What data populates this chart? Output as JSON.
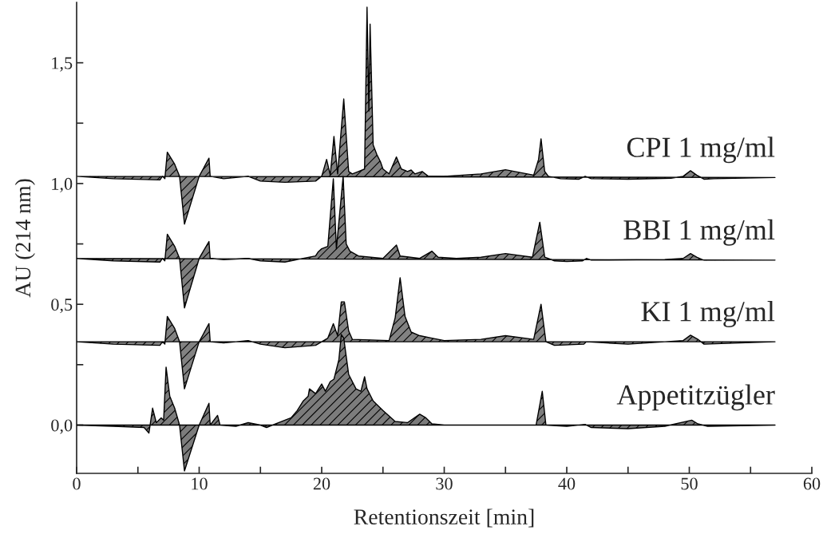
{
  "chart_data": {
    "type": "area",
    "xlabel": "Retentionszeit [min]",
    "ylabel": "AU (214 nm)",
    "xlim": [
      0,
      60
    ],
    "ylim": [
      -0.2,
      1.75
    ],
    "xticks": [
      0,
      {
        "value": 5,
        "label": null
      },
      10,
      {
        "value": 15,
        "label": null
      },
      20,
      {
        "value": 25,
        "label": null
      },
      30,
      {
        "value": 35,
        "label": null
      },
      40,
      {
        "value": 45,
        "label": null
      },
      50,
      {
        "value": 55,
        "label": null
      },
      60
    ],
    "yticks": [
      {
        "value": 0,
        "label": "0,0"
      },
      {
        "value": 0.25,
        "label": null
      },
      {
        "value": 0.5,
        "label": "0,5"
      },
      {
        "value": 0.75,
        "label": null
      },
      {
        "value": 1.0,
        "label": "1,0"
      },
      {
        "value": 1.25,
        "label": null
      },
      {
        "value": 1.5,
        "label": "1,5"
      }
    ],
    "grid": false,
    "legend": false,
    "series": [
      {
        "name": "CPI 1 mg/ml",
        "color": "#808080",
        "x": [
          0,
          3,
          6.8,
          7.0,
          7.2,
          7.4,
          8.0,
          8.4,
          8.8,
          10.0,
          10.8,
          10.9,
          12,
          14,
          15,
          17,
          19.5,
          20.0,
          20.4,
          20.7,
          21.0,
          21.3,
          21.8,
          22.2,
          22.5,
          23.0,
          23.5,
          23.7,
          23.85,
          23.95,
          24.2,
          24.5,
          24.8,
          25,
          25.5,
          26.1,
          26.5,
          27,
          27.3,
          27.6,
          28.2,
          28.7,
          30,
          33,
          35,
          37.3,
          37.7,
          37.9,
          38.2,
          38.5,
          39.5,
          41,
          41.5,
          42,
          45,
          48.5,
          49.5,
          50.1,
          50.6,
          51.2,
          52,
          57
        ],
        "values": [
          1.03,
          1.02,
          1.015,
          1.03,
          1.02,
          1.13,
          1.08,
          1.03,
          0.832,
          1.03,
          1.105,
          1.03,
          1.02,
          1.03,
          1.01,
          1.005,
          1.01,
          1.03,
          1.1,
          1.035,
          1.195,
          1.04,
          1.35,
          1.05,
          1.04,
          1.05,
          1.06,
          1.73,
          1.3,
          1.66,
          1.16,
          1.12,
          1.09,
          1.06,
          1.04,
          1.11,
          1.06,
          1.05,
          1.056,
          1.04,
          1.05,
          1.03,
          1.03,
          1.04,
          1.057,
          1.035,
          1.1,
          1.185,
          1.05,
          1.03,
          1.02,
          1.018,
          1.03,
          1.02,
          1.018,
          1.022,
          1.03,
          1.053,
          1.035,
          1.018,
          1.02,
          1.025
        ]
      },
      {
        "name": "BBI 1 mg/ml",
        "color": "#7e7e7e",
        "x": [
          0,
          3,
          6.8,
          7.0,
          7.2,
          7.4,
          8.0,
          8.4,
          8.8,
          10.0,
          10.8,
          10.9,
          12,
          14,
          15,
          17,
          19.5,
          19.7,
          20.0,
          20.5,
          20.95,
          21.2,
          21.75,
          22.0,
          22.3,
          23,
          25,
          26.1,
          26.4,
          28,
          29.0,
          29.5,
          31,
          33,
          35,
          37.2,
          37.8,
          38.2,
          39,
          40,
          41.3,
          41.6,
          42,
          48,
          49.5,
          50.1,
          50.6,
          51.2,
          57
        ],
        "values": [
          0.69,
          0.68,
          0.675,
          0.69,
          0.68,
          0.79,
          0.74,
          0.69,
          0.485,
          0.69,
          0.76,
          0.69,
          0.685,
          0.69,
          0.68,
          0.675,
          0.7,
          0.716,
          0.73,
          0.74,
          1.02,
          0.73,
          1.03,
          0.75,
          0.72,
          0.7,
          0.69,
          0.745,
          0.7,
          0.69,
          0.72,
          0.695,
          0.69,
          0.695,
          0.71,
          0.695,
          0.84,
          0.695,
          0.68,
          0.677,
          0.68,
          0.69,
          0.683,
          0.685,
          0.69,
          0.71,
          0.695,
          0.682,
          0.683
        ]
      },
      {
        "name": "KI 1 mg/ml",
        "color": "#828282",
        "x": [
          0,
          3,
          6.8,
          7.0,
          7.2,
          7.4,
          8.0,
          8.4,
          8.8,
          10.0,
          10.8,
          10.9,
          12,
          14,
          15,
          17,
          19.5,
          20,
          20.5,
          20.95,
          21.3,
          21.6,
          21.85,
          22.2,
          22.5,
          25.5,
          26.0,
          26.4,
          26.8,
          27.3,
          28,
          29,
          30,
          33,
          35,
          37.3,
          37.9,
          38.3,
          39,
          41.4,
          41.6,
          45,
          49.5,
          50.1,
          50.7,
          51.2,
          57
        ],
        "values": [
          0.345,
          0.335,
          0.33,
          0.345,
          0.335,
          0.45,
          0.4,
          0.345,
          0.15,
          0.345,
          0.42,
          0.345,
          0.34,
          0.35,
          0.335,
          0.32,
          0.33,
          0.345,
          0.36,
          0.42,
          0.37,
          0.51,
          0.51,
          0.39,
          0.355,
          0.35,
          0.445,
          0.61,
          0.45,
          0.385,
          0.37,
          0.36,
          0.35,
          0.355,
          0.37,
          0.355,
          0.5,
          0.345,
          0.33,
          0.335,
          0.345,
          0.335,
          0.35,
          0.372,
          0.355,
          0.335,
          0.345
        ]
      },
      {
        "name": "Appetitzügler",
        "color": "#7c7c7c",
        "x": [
          0,
          3,
          5.5,
          5.9,
          6.2,
          6.5,
          6.9,
          7.1,
          7.3,
          7.6,
          8.0,
          8.4,
          8.8,
          10.0,
          10.8,
          10.9,
          11.5,
          11.7,
          13,
          14,
          15,
          15.5,
          16.5,
          17,
          17.5,
          18,
          18.5,
          18.9,
          19.0,
          19.5,
          20.0,
          20.3,
          20.7,
          21.0,
          21.4,
          21.6,
          21.8,
          22.2,
          22.8,
          23.2,
          23.5,
          23.7,
          24.2,
          25,
          26,
          27,
          28.0,
          28.5,
          29,
          30,
          37.5,
          38.0,
          38.3,
          40,
          41.5,
          42,
          45,
          48,
          50.2,
          50.7,
          51.5,
          57
        ],
        "values": [
          0.0,
          -0.005,
          -0.01,
          -0.033,
          0.07,
          0.01,
          0.03,
          0.02,
          0.24,
          0.12,
          0.07,
          0.0,
          -0.19,
          0.0,
          0.09,
          0.0,
          0.04,
          0.0,
          -0.005,
          0.01,
          0.0,
          -0.01,
          0.01,
          0.02,
          0.03,
          0.06,
          0.1,
          0.12,
          0.15,
          0.13,
          0.17,
          0.14,
          0.18,
          0.19,
          0.27,
          0.375,
          0.36,
          0.21,
          0.15,
          0.14,
          0.2,
          0.15,
          0.1,
          0.06,
          0.015,
          0.01,
          0.045,
          0.03,
          0.005,
          0.0,
          0.0,
          0.14,
          0.0,
          -0.005,
          0.003,
          -0.01,
          -0.015,
          -0.005,
          0.02,
          0.005,
          -0.005,
          0.0
        ]
      }
    ]
  }
}
